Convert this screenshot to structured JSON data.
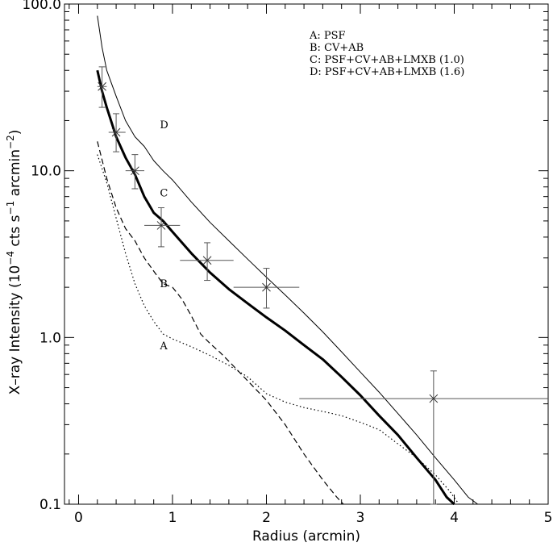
{
  "chart_data": {
    "type": "line",
    "title": "",
    "xlabel": "Radius (arcmin)",
    "ylabel_main": "X–ray Intensity (10",
    "ylabel_exp1": "−4",
    "ylabel_mid": " cts s",
    "ylabel_exp2": "−1",
    "ylabel_mid2": " arcmin",
    "ylabel_exp3": "−2",
    "ylabel_end": ")",
    "xlim": [
      -0.15,
      5.0
    ],
    "ylim": [
      0.1,
      100.0
    ],
    "y_scale": "log",
    "x_ticks": [
      {
        "value": 0,
        "label": "0"
      },
      {
        "value": 1,
        "label": "1"
      },
      {
        "value": 2,
        "label": "2"
      },
      {
        "value": 3,
        "label": "3"
      },
      {
        "value": 4,
        "label": "4"
      },
      {
        "value": 5,
        "label": "5"
      }
    ],
    "y_ticks": [
      {
        "value": 100.0,
        "label": "100.0"
      },
      {
        "value": 10.0,
        "label": "10.0"
      },
      {
        "value": 1.0,
        "label": "1.0"
      },
      {
        "value": 0.1,
        "label": "0.1"
      }
    ],
    "legend": {
      "placement": "top-right",
      "entries": [
        "A:  PSF",
        "B:  CV+AB",
        "C:  PSF+CV+AB+LMXB  (1.0)",
        "D:  PSF+CV+AB+LMXB  (1.6)"
      ]
    },
    "series": [
      {
        "name": "A",
        "label_point": {
          "x": 0.78,
          "y": 0.85
        },
        "style": "dotted",
        "x": [
          0.2,
          0.3,
          0.4,
          0.5,
          0.6,
          0.7,
          0.8,
          0.9,
          1.0,
          1.2,
          1.4,
          1.6,
          1.8,
          2.0,
          2.2,
          2.4,
          2.6,
          2.8,
          3.0,
          3.2,
          3.4,
          3.6,
          3.8,
          3.95,
          4.05
        ],
        "values": [
          12.5,
          8.5,
          5.2,
          3.2,
          2.1,
          1.55,
          1.25,
          1.05,
          0.98,
          0.88,
          0.78,
          0.68,
          0.58,
          0.46,
          0.41,
          0.38,
          0.36,
          0.34,
          0.31,
          0.28,
          0.23,
          0.19,
          0.15,
          0.12,
          0.1
        ]
      },
      {
        "name": "B",
        "label_point": {
          "x": 0.78,
          "y": 2.0
        },
        "style": "dashed",
        "x": [
          0.2,
          0.3,
          0.4,
          0.5,
          0.6,
          0.7,
          0.8,
          0.9,
          1.0,
          1.1,
          1.2,
          1.3,
          1.4,
          1.5,
          1.6,
          1.8,
          2.0,
          2.2,
          2.4,
          2.6,
          2.75,
          2.82
        ],
        "values": [
          15.0,
          9.0,
          6.0,
          4.5,
          3.8,
          3.0,
          2.5,
          2.1,
          2.0,
          1.7,
          1.35,
          1.05,
          0.92,
          0.82,
          0.72,
          0.55,
          0.42,
          0.3,
          0.2,
          0.14,
          0.11,
          0.1
        ]
      },
      {
        "name": "C",
        "label_point": {
          "x": 0.78,
          "y": 7.0
        },
        "style": "thick",
        "x": [
          0.2,
          0.25,
          0.3,
          0.4,
          0.5,
          0.6,
          0.7,
          0.8,
          0.9,
          1.0,
          1.2,
          1.4,
          1.6,
          1.8,
          2.0,
          2.2,
          2.4,
          2.6,
          2.8,
          3.0,
          3.2,
          3.4,
          3.6,
          3.8,
          3.92,
          4.0
        ],
        "values": [
          40.0,
          30.0,
          24.0,
          16.0,
          12.0,
          9.5,
          7.0,
          5.6,
          5.0,
          4.3,
          3.2,
          2.45,
          1.95,
          1.6,
          1.32,
          1.1,
          0.9,
          0.74,
          0.58,
          0.45,
          0.34,
          0.26,
          0.19,
          0.14,
          0.11,
          0.1
        ]
      },
      {
        "name": "D",
        "label_point": {
          "x": 0.78,
          "y": 18.0
        },
        "style": "thin",
        "x": [
          0.2,
          0.25,
          0.3,
          0.4,
          0.5,
          0.6,
          0.7,
          0.8,
          0.9,
          1.0,
          1.2,
          1.4,
          1.6,
          1.8,
          2.0,
          2.2,
          2.4,
          2.6,
          2.8,
          3.0,
          3.2,
          3.4,
          3.6,
          3.8,
          4.0,
          4.15,
          4.25
        ],
        "values": [
          85.0,
          55.0,
          40.0,
          28.0,
          20.0,
          16.0,
          14.0,
          11.5,
          10.0,
          8.8,
          6.5,
          4.9,
          3.8,
          2.95,
          2.3,
          1.8,
          1.4,
          1.08,
          0.82,
          0.62,
          0.47,
          0.35,
          0.26,
          0.19,
          0.14,
          0.11,
          0.1
        ]
      }
    ],
    "data_points": [
      {
        "x": 0.25,
        "y": 32.0,
        "x_lo": 0.2,
        "x_hi": 0.3,
        "y_lo": 24.0,
        "y_hi": 42.0
      },
      {
        "x": 0.4,
        "y": 17.0,
        "x_lo": 0.32,
        "x_hi": 0.5,
        "y_lo": 13.0,
        "y_hi": 22.0
      },
      {
        "x": 0.6,
        "y": 10.0,
        "x_lo": 0.5,
        "x_hi": 0.7,
        "y_lo": 7.8,
        "y_hi": 12.5
      },
      {
        "x": 0.88,
        "y": 4.7,
        "x_lo": 0.7,
        "x_hi": 1.08,
        "y_lo": 3.5,
        "y_hi": 6.0
      },
      {
        "x": 1.37,
        "y": 2.9,
        "x_lo": 1.08,
        "x_hi": 1.65,
        "y_lo": 2.2,
        "y_hi": 3.7
      },
      {
        "x": 2.0,
        "y": 2.0,
        "x_lo": 1.65,
        "x_hi": 2.35,
        "y_lo": 1.5,
        "y_hi": 2.6
      },
      {
        "x": 3.78,
        "y": 0.43,
        "x_lo": 2.35,
        "x_hi": 5.0,
        "y_lo": 0.1,
        "y_hi": 0.63
      }
    ]
  }
}
